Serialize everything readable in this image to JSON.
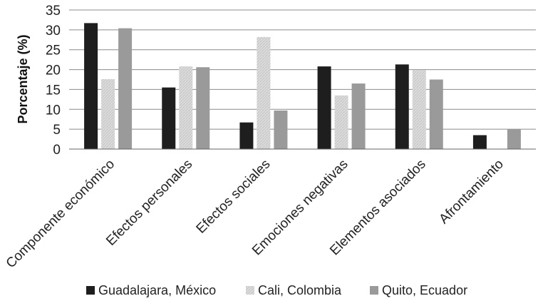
{
  "chart_data": {
    "type": "bar",
    "title": "",
    "xlabel": "",
    "ylabel": "Porcentaje (%)",
    "ylim": [
      0,
      35
    ],
    "yticks": [
      0,
      5,
      10,
      15,
      20,
      25,
      30,
      35
    ],
    "grid": "horizontal",
    "legend_position": "bottom",
    "categories": [
      "Componente económico",
      "Efectos personales",
      "Efectos sociales",
      "Emociones negativas",
      "Elementos asociados",
      "Afrontamiento"
    ],
    "series": [
      {
        "name": "Guadalajara, México",
        "color": "#1e1e1e",
        "values": [
          31.7,
          15.5,
          6.7,
          20.8,
          21.3,
          3.5
        ]
      },
      {
        "name": "Cali, Colombia",
        "color": "#d4d4d4",
        "values": [
          17.6,
          20.8,
          28.2,
          13.5,
          19.9,
          0
        ]
      },
      {
        "name": "Quito, Ecuador",
        "color": "#9a9a9a",
        "values": [
          30.4,
          20.6,
          9.7,
          16.5,
          17.5,
          5.0
        ]
      }
    ]
  }
}
